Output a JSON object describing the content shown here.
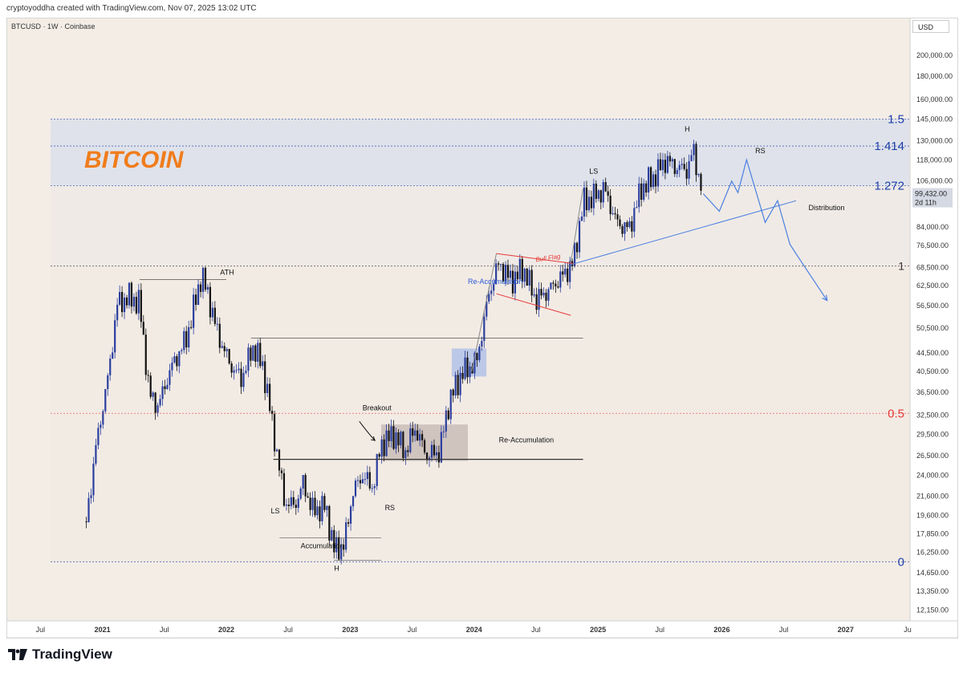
{
  "header": {
    "credit": "cryptoyoddha created with TradingView.com, Nov 07, 2025 13:02 UTC",
    "symbol": "BTCUSD · 1W · Coinbase",
    "currency": "USD"
  },
  "brand": {
    "name": "TradingView"
  },
  "colors": {
    "background": "#f3ede6",
    "fib_zone": "#dde0ea",
    "fib_blue": "#1d3fa8",
    "fib_red": "#e53935",
    "candle_up": "#2a3e9e",
    "candle_down": "#111111",
    "bitcoin_orange": "#f07c1b",
    "projection": "#4a7fe0"
  },
  "chart_data": {
    "type": "candlestick",
    "title": "BITCOIN",
    "symbol": "BTCUSD",
    "interval": "1W",
    "exchange": "Coinbase",
    "y_scale": "log",
    "ylim": [
      11500,
      240000
    ],
    "y_ticks": [
      {
        "value": 200000,
        "label": "200,000.00"
      },
      {
        "value": 180000,
        "label": "180,000.00"
      },
      {
        "value": 160000,
        "label": "160,000.00"
      },
      {
        "value": 145000,
        "label": "145,000.00"
      },
      {
        "value": 130000,
        "label": "130,000.00"
      },
      {
        "value": 118000,
        "label": "118,000.00"
      },
      {
        "value": 106000,
        "label": "106,000.00"
      },
      {
        "value": 84000,
        "label": "84,000.00"
      },
      {
        "value": 76500,
        "label": "76,500.00"
      },
      {
        "value": 68500,
        "label": "68,500.00"
      },
      {
        "value": 62500,
        "label": "62,500.00"
      },
      {
        "value": 56500,
        "label": "56,500.00"
      },
      {
        "value": 50500,
        "label": "50,500.00"
      },
      {
        "value": 44500,
        "label": "44,500.00"
      },
      {
        "value": 40500,
        "label": "40,500.00"
      },
      {
        "value": 36500,
        "label": "36,500.00"
      },
      {
        "value": 32500,
        "label": "32,500.00"
      },
      {
        "value": 29500,
        "label": "29,500.00"
      },
      {
        "value": 26500,
        "label": "26,500.00"
      },
      {
        "value": 24000,
        "label": "24,000.00"
      },
      {
        "value": 21600,
        "label": "21,600.00"
      },
      {
        "value": 19600,
        "label": "19,600.00"
      },
      {
        "value": 17850,
        "label": "17,850.00"
      },
      {
        "value": 16250,
        "label": "16,250.00"
      },
      {
        "value": 14650,
        "label": "14,650.00"
      },
      {
        "value": 13350,
        "label": "13,350.00"
      },
      {
        "value": 12150,
        "label": "12,150.00"
      }
    ],
    "x_range": [
      2020.4,
      2027.5
    ],
    "x_ticks": [
      {
        "t": 2020.5,
        "label": "Jul",
        "bold": false
      },
      {
        "t": 2021.0,
        "label": "2021",
        "bold": true
      },
      {
        "t": 2021.5,
        "label": "Jul",
        "bold": false
      },
      {
        "t": 2022.0,
        "label": "2022",
        "bold": true
      },
      {
        "t": 2022.5,
        "label": "Jul",
        "bold": false
      },
      {
        "t": 2023.0,
        "label": "2023",
        "bold": true
      },
      {
        "t": 2023.5,
        "label": "Jul",
        "bold": false
      },
      {
        "t": 2024.0,
        "label": "2024",
        "bold": true
      },
      {
        "t": 2024.5,
        "label": "Jul",
        "bold": false
      },
      {
        "t": 2025.0,
        "label": "2025",
        "bold": true
      },
      {
        "t": 2025.5,
        "label": "Jul",
        "bold": false
      },
      {
        "t": 2026.0,
        "label": "2026",
        "bold": true
      },
      {
        "t": 2026.5,
        "label": "Jul",
        "bold": false
      },
      {
        "t": 2027.0,
        "label": "2027",
        "bold": true
      },
      {
        "t": 2027.5,
        "label": "Ju",
        "bold": false
      }
    ],
    "price_path": [
      [
        2020.87,
        19000
      ],
      [
        2020.95,
        28000
      ],
      [
        2021.05,
        40000
      ],
      [
        2021.12,
        57000
      ],
      [
        2021.22,
        59000
      ],
      [
        2021.3,
        57000
      ],
      [
        2021.38,
        36000
      ],
      [
        2021.45,
        34000
      ],
      [
        2021.55,
        41000
      ],
      [
        2021.68,
        48000
      ],
      [
        2021.8,
        66000
      ],
      [
        2021.85,
        60000
      ],
      [
        2021.93,
        49000
      ],
      [
        2022.03,
        42000
      ],
      [
        2022.12,
        39000
      ],
      [
        2022.22,
        46000
      ],
      [
        2022.3,
        41000
      ],
      [
        2022.38,
        30000
      ],
      [
        2022.47,
        21000
      ],
      [
        2022.55,
        20500
      ],
      [
        2022.62,
        23000
      ],
      [
        2022.7,
        20000
      ],
      [
        2022.8,
        20500
      ],
      [
        2022.87,
        16500
      ],
      [
        2022.95,
        16800
      ],
      [
        2023.02,
        22000
      ],
      [
        2023.1,
        24000
      ],
      [
        2023.18,
        22500
      ],
      [
        2023.25,
        28000
      ],
      [
        2023.35,
        29500
      ],
      [
        2023.45,
        27000
      ],
      [
        2023.52,
        30500
      ],
      [
        2023.62,
        26500
      ],
      [
        2023.72,
        27000
      ],
      [
        2023.8,
        35000
      ],
      [
        2023.9,
        40000
      ],
      [
        2024.02,
        42500
      ],
      [
        2024.12,
        60000
      ],
      [
        2024.2,
        70000
      ],
      [
        2024.3,
        64000
      ],
      [
        2024.4,
        68000
      ],
      [
        2024.5,
        58000
      ],
      [
        2024.6,
        61000
      ],
      [
        2024.7,
        65000
      ],
      [
        2024.8,
        70000
      ],
      [
        2024.88,
        95000
      ],
      [
        2024.97,
        98000
      ],
      [
        2025.05,
        102000
      ],
      [
        2025.15,
        86000
      ],
      [
        2025.25,
        83000
      ],
      [
        2025.35,
        102000
      ],
      [
        2025.45,
        108000
      ],
      [
        2025.55,
        118000
      ],
      [
        2025.62,
        114000
      ],
      [
        2025.72,
        112000
      ],
      [
        2025.77,
        124000
      ],
      [
        2025.82,
        106000
      ],
      [
        2025.85,
        99432
      ]
    ],
    "last_price": {
      "value": 99432,
      "label": "99,432.00",
      "countdown": "2d 11h"
    },
    "fib_levels": [
      {
        "ratio_label": "1.5",
        "price": 145000,
        "color": "#1d3fa8"
      },
      {
        "ratio_label": "1.414",
        "price": 126500,
        "color": "#1d3fa8"
      },
      {
        "ratio_label": "1.272",
        "price": 103500,
        "color": "#1d3fa8"
      },
      {
        "ratio_label": "1",
        "price": 69000,
        "color": "#333333"
      },
      {
        "ratio_label": "0.5",
        "price": 32800,
        "color": "#e53935"
      },
      {
        "ratio_label": "0",
        "price": 15500,
        "color": "#1d3fa8"
      }
    ],
    "projection_path": [
      [
        2025.85,
        99432
      ],
      [
        2025.98,
        91000
      ],
      [
        2026.08,
        106000
      ],
      [
        2026.13,
        100000
      ],
      [
        2026.2,
        118000
      ],
      [
        2026.35,
        86000
      ],
      [
        2026.45,
        96000
      ],
      [
        2026.55,
        77000
      ],
      [
        2026.62,
        72000
      ],
      [
        2026.85,
        58000
      ]
    ],
    "annotations": [
      {
        "text": "ATH",
        "t": 2021.95,
        "price": 66000,
        "color": "#111111"
      },
      {
        "text": "Breakout",
        "t": 2023.1,
        "price": 33300,
        "color": "#111111"
      },
      {
        "text": "Re-Accumulation",
        "t": 2024.2,
        "price": 28300,
        "color": "#111111"
      },
      {
        "text": "Re-Accumulation",
        "t": 2023.95,
        "price": 63000,
        "color": "#2a5bd7"
      },
      {
        "text": "Bull Flag",
        "t": 2024.5,
        "price": 70500,
        "color": "#e53935"
      },
      {
        "text": "LS",
        "t": 2022.36,
        "price": 19800,
        "color": "#111111"
      },
      {
        "text": "RS",
        "t": 2023.28,
        "price": 20100,
        "color": "#111111"
      },
      {
        "text": "Accumulation",
        "t": 2022.6,
        "price": 16600,
        "color": "#111111"
      },
      {
        "text": "H",
        "t": 2022.87,
        "price": 14800,
        "color": "#111111"
      },
      {
        "text": "LS",
        "t": 2024.93,
        "price": 110000,
        "color": "#111111"
      },
      {
        "text": "H",
        "t": 2025.7,
        "price": 136000,
        "color": "#111111"
      },
      {
        "text": "RS",
        "t": 2026.27,
        "price": 122000,
        "color": "#111111"
      },
      {
        "text": "Distribution",
        "t": 2026.7,
        "price": 91500,
        "color": "#111111"
      }
    ]
  }
}
